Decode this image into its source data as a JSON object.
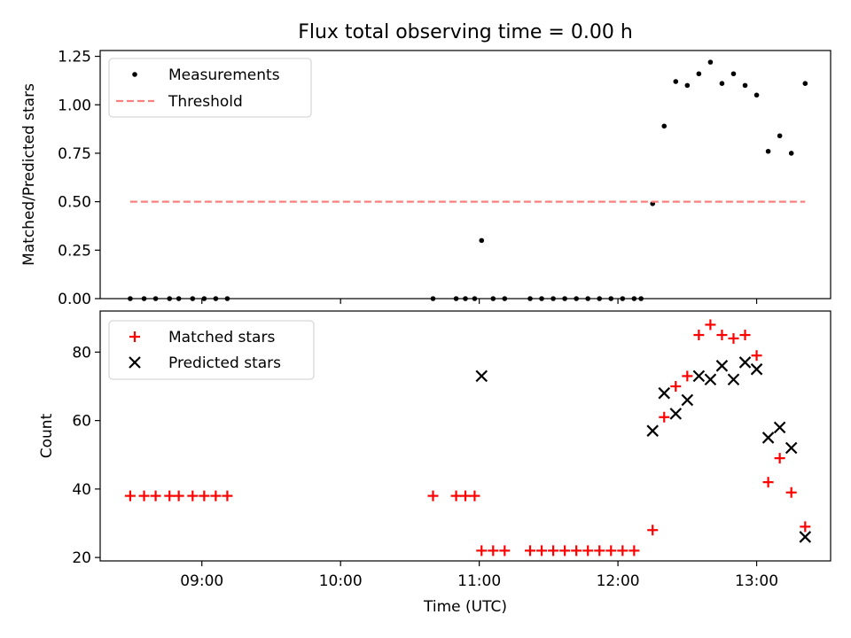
{
  "chart_data": [
    {
      "type": "scatter",
      "title": "Flux total observing time = 0.00 h",
      "xlabel": "",
      "ylabel": "Matched/Predicted stars",
      "xlim": [
        "08:16",
        "13:32"
      ],
      "ylim": [
        0,
        1.28
      ],
      "yticks": [
        0,
        0.25,
        0.5,
        0.75,
        1.0,
        1.25
      ],
      "ytick_labels": [
        "0.00",
        "0.25",
        "0.50",
        "0.75",
        "1.00",
        "1.25"
      ],
      "grid": false,
      "legend": "top-left",
      "series": [
        {
          "name": "Measurements",
          "kind": "dot",
          "color": "#000000",
          "points": [
            [
              "08:29",
              0
            ],
            [
              "08:35",
              0
            ],
            [
              "08:40",
              0
            ],
            [
              "08:46",
              0
            ],
            [
              "08:50",
              0
            ],
            [
              "08:56",
              0
            ],
            [
              "09:01",
              0
            ],
            [
              "09:06",
              0
            ],
            [
              "09:11",
              0
            ],
            [
              "10:40",
              0
            ],
            [
              "10:50",
              0
            ],
            [
              "10:54",
              0
            ],
            [
              "10:58",
              0
            ],
            [
              "11:01",
              0.3
            ],
            [
              "11:06",
              0
            ],
            [
              "11:11",
              0
            ],
            [
              "11:22",
              0
            ],
            [
              "11:27",
              0
            ],
            [
              "11:32",
              0
            ],
            [
              "11:37",
              0
            ],
            [
              "11:42",
              0
            ],
            [
              "11:47",
              0
            ],
            [
              "11:52",
              0
            ],
            [
              "11:57",
              0
            ],
            [
              "12:02",
              0
            ],
            [
              "12:07",
              0
            ],
            [
              "12:10",
              0
            ],
            [
              "12:15",
              0.49
            ],
            [
              "12:20",
              0.89
            ],
            [
              "12:25",
              1.12
            ],
            [
              "12:30",
              1.1
            ],
            [
              "12:35",
              1.16
            ],
            [
              "12:40",
              1.22
            ],
            [
              "12:45",
              1.11
            ],
            [
              "12:50",
              1.16
            ],
            [
              "12:55",
              1.1
            ],
            [
              "13:00",
              1.05
            ],
            [
              "13:05",
              0.76
            ],
            [
              "13:10",
              0.84
            ],
            [
              "13:15",
              0.75
            ],
            [
              "13:21",
              1.11
            ]
          ]
        },
        {
          "name": "Threshold",
          "kind": "line",
          "color": "#ff7f7f",
          "points": [
            [
              "08:29",
              0.5
            ],
            [
              "13:21",
              0.5
            ]
          ]
        }
      ]
    },
    {
      "type": "scatter",
      "title": "",
      "xlabel": "Time (UTC)",
      "ylabel": "Count",
      "xlim": [
        "08:16",
        "13:32"
      ],
      "ylim": [
        19,
        92
      ],
      "yticks": [
        20,
        40,
        60,
        80
      ],
      "ytick_labels": [
        "20",
        "40",
        "60",
        "80"
      ],
      "xticks": [
        "09:00",
        "10:00",
        "11:00",
        "12:00",
        "13:00"
      ],
      "grid": false,
      "legend": "top-left",
      "series": [
        {
          "name": "Matched stars",
          "kind": "plus",
          "color": "#ff0000",
          "points": [
            [
              "08:29",
              38
            ],
            [
              "08:35",
              38
            ],
            [
              "08:40",
              38
            ],
            [
              "08:46",
              38
            ],
            [
              "08:50",
              38
            ],
            [
              "08:56",
              38
            ],
            [
              "09:01",
              38
            ],
            [
              "09:06",
              38
            ],
            [
              "09:11",
              38
            ],
            [
              "10:40",
              38
            ],
            [
              "10:50",
              38
            ],
            [
              "10:54",
              38
            ],
            [
              "10:58",
              38
            ],
            [
              "11:01",
              22
            ],
            [
              "11:06",
              22
            ],
            [
              "11:11",
              22
            ],
            [
              "11:22",
              22
            ],
            [
              "11:27",
              22
            ],
            [
              "11:32",
              22
            ],
            [
              "11:37",
              22
            ],
            [
              "11:42",
              22
            ],
            [
              "11:47",
              22
            ],
            [
              "11:52",
              22
            ],
            [
              "11:57",
              22
            ],
            [
              "12:02",
              22
            ],
            [
              "12:07",
              22
            ],
            [
              "12:15",
              28
            ],
            [
              "12:20",
              61
            ],
            [
              "12:25",
              70
            ],
            [
              "12:30",
              73
            ],
            [
              "12:35",
              85
            ],
            [
              "12:40",
              88
            ],
            [
              "12:45",
              85
            ],
            [
              "12:50",
              84
            ],
            [
              "12:55",
              85
            ],
            [
              "13:00",
              79
            ],
            [
              "13:05",
              42
            ],
            [
              "13:10",
              49
            ],
            [
              "13:15",
              39
            ],
            [
              "13:21",
              29
            ]
          ]
        },
        {
          "name": "Predicted stars",
          "kind": "x",
          "color": "#000000",
          "points": [
            [
              "11:01",
              73
            ],
            [
              "12:15",
              57
            ],
            [
              "12:20",
              68
            ],
            [
              "12:25",
              62
            ],
            [
              "12:30",
              66
            ],
            [
              "12:35",
              73
            ],
            [
              "12:40",
              72
            ],
            [
              "12:45",
              76
            ],
            [
              "12:50",
              72
            ],
            [
              "12:55",
              77
            ],
            [
              "13:00",
              75
            ],
            [
              "13:05",
              55
            ],
            [
              "13:10",
              58
            ],
            [
              "13:15",
              52
            ],
            [
              "13:21",
              26
            ]
          ]
        }
      ]
    }
  ]
}
